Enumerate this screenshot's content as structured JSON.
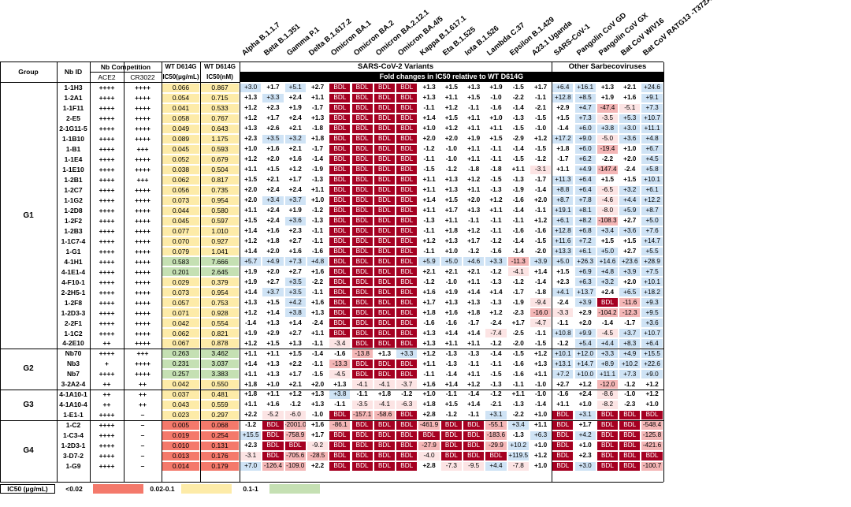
{
  "header": {
    "group": "Group",
    "nb_id": "Nb ID",
    "nb_competition": "Nb Competition",
    "ace2": "ACE2",
    "cr3022": "CR3022",
    "wt_ugml": [
      "WT D614G",
      "IC50(μg/mL)"
    ],
    "wt_nm": [
      "WT D614G",
      "IC50(nM)"
    ],
    "sars_cov2_variants": "SARS-CoV-2 Variants",
    "other_sarbecoviruses": "Other Sarbecoviruses",
    "fold_changes": "Fold changes in IC50 relative to WT D614G"
  },
  "variants": [
    "Alpha B.1.1.7",
    "Beta B.1.351",
    "Gamma P.1",
    "Delta B.1.617.2",
    "Omicron BA.1",
    "Omicron BA.2",
    "Omicron BA.2.12.1",
    "Omicron BA.4/5",
    "Kappa B.1.617.1",
    "Eta B.1.525",
    "Iota B.1.526",
    "Lambda C.37",
    "Epsilon B.1.429",
    "A23.1 Uganda",
    "SARS-CoV-1",
    "Pangolin CoV GD",
    "Pangolin CoV GX",
    "Bat CoV WIV16",
    "Bat CoV RATG13 -T372A"
  ],
  "groups": [
    {
      "name": "G1",
      "rows": 26
    },
    {
      "name": "G2",
      "rows": 4
    },
    {
      "name": "G3",
      "rows": 3
    },
    {
      "name": "G4",
      "rows": 6
    }
  ],
  "rows": [
    {
      "id": "1-1H3",
      "ace2": "++++",
      "cr": "++++",
      "ic": "0.066",
      "nm": "0.867",
      "v": [
        "+3.0",
        "+1.7",
        "+5.1",
        "+2.7",
        "BDL",
        "BDL",
        "BDL",
        "BDL",
        "+1.3",
        "+1.5",
        "+1.3",
        "+1.9",
        "-1.5",
        "+1.7",
        "+6.4",
        "+16.1",
        "+1.3",
        "+2.1",
        "+24.6"
      ]
    },
    {
      "id": "1-2A1",
      "ace2": "++++",
      "cr": "++++",
      "ic": "0.054",
      "nm": "0.715",
      "v": [
        "+1.3",
        "+3.3",
        "+2.4",
        "+1.1",
        "BDL",
        "BDL",
        "BDL",
        "BDL",
        "+1.3",
        "+1.1",
        "+1.5",
        "-1.0",
        "-2.2",
        "-1.1",
        "+12.8",
        "+8.5",
        "+1.9",
        "+1.6",
        "+9.1"
      ]
    },
    {
      "id": "1-1F11",
      "ace2": "++++",
      "cr": "++++",
      "ic": "0.041",
      "nm": "0.533",
      "v": [
        "+1.2",
        "+2.3",
        "+1.9",
        "-1.7",
        "BDL",
        "BDL",
        "BDL",
        "BDL",
        "-1.1",
        "+1.2",
        "-1.1",
        "-1.6",
        "-1.4",
        "-2.1",
        "+2.9",
        "+4.7",
        "-47.4",
        "-5.1",
        "+7.3"
      ]
    },
    {
      "id": "2-E5",
      "ace2": "++++",
      "cr": "++++",
      "ic": "0.058",
      "nm": "0.767",
      "v": [
        "+1.2",
        "+1.7",
        "+2.4",
        "+1.3",
        "BDL",
        "BDL",
        "BDL",
        "BDL",
        "+1.4",
        "+1.5",
        "+1.1",
        "+1.0",
        "-1.3",
        "-1.5",
        "+1.5",
        "+7.3",
        "-3.5",
        "+5.3",
        "+10.7"
      ]
    },
    {
      "id": "2-1G11-5",
      "ace2": "++++",
      "cr": "++++",
      "ic": "0.049",
      "nm": "0.643",
      "v": [
        "+1.3",
        "+2.6",
        "+2.1",
        "-1.8",
        "BDL",
        "BDL",
        "BDL",
        "BDL",
        "+1.0",
        "+1.2",
        "+1.1",
        "+1.1",
        "-1.5",
        "-1.0",
        "-1.4",
        "+6.0",
        "+3.8",
        "+3.0",
        "+11.1"
      ]
    },
    {
      "id": "1-1B10",
      "ace2": "++++",
      "cr": "++++",
      "ic": "0.089",
      "nm": "1.175",
      "v": [
        "+2.3",
        "+3.5",
        "+3.2",
        "+1.8",
        "BDL",
        "BDL",
        "BDL",
        "BDL",
        "+2.0",
        "+2.0",
        "+1.9",
        "+1.5",
        "-2.9",
        "+1.2",
        "+17.2",
        "+9.0",
        "-5.0",
        "+3.6",
        "+4.8"
      ]
    },
    {
      "id": "1-B1",
      "ace2": "++++",
      "cr": "+++",
      "ic": "0.045",
      "nm": "0.593",
      "v": [
        "+1.0",
        "+1.6",
        "+2.1",
        "-1.7",
        "BDL",
        "BDL",
        "BDL",
        "BDL",
        "-1.2",
        "-1.0",
        "+1.1",
        "-1.1",
        "-1.4",
        "-1.5",
        "+1.8",
        "+6.0",
        "-19.4",
        "+1.0",
        "+6.7"
      ]
    },
    {
      "id": "1-1E4",
      "ace2": "++++",
      "cr": "++++",
      "ic": "0.052",
      "nm": "0.679",
      "v": [
        "+1.2",
        "+2.0",
        "+1.6",
        "-1.4",
        "BDL",
        "BDL",
        "BDL",
        "BDL",
        "-1.1",
        "-1.0",
        "+1.1",
        "-1.1",
        "-1.5",
        "-1.2",
        "-1.7",
        "+6.2",
        "-2.2",
        "+2.0",
        "+4.5"
      ]
    },
    {
      "id": "1-1E10",
      "ace2": "++++",
      "cr": "++++",
      "ic": "0.038",
      "nm": "0.504",
      "v": [
        "+1.1",
        "+1.5",
        "+1.2",
        "-1.9",
        "BDL",
        "BDL",
        "BDL",
        "BDL",
        "-1.5",
        "-1.2",
        "-1.8",
        "-1.8",
        "+1.1",
        "-3.1",
        "+1.1",
        "+4.9",
        "-147.4",
        "-2.4",
        "+5.8"
      ]
    },
    {
      "id": "1-2B1",
      "ace2": "++++",
      "cr": "+++",
      "ic": "0.062",
      "nm": "0.817",
      "v": [
        "+1.5",
        "+2.1",
        "+1.7",
        "-1.3",
        "BDL",
        "BDL",
        "BDL",
        "BDL",
        "+1.1",
        "+1.3",
        "+1.2",
        "-1.5",
        "-1.3",
        "-1.7",
        "+11.3",
        "+6.4",
        "+1.5",
        "+1.5",
        "+10.1"
      ]
    },
    {
      "id": "1-2C7",
      "ace2": "++++",
      "cr": "++++",
      "ic": "0.056",
      "nm": "0.735",
      "v": [
        "+2.0",
        "+2.4",
        "+2.4",
        "+1.1",
        "BDL",
        "BDL",
        "BDL",
        "BDL",
        "+1.1",
        "+1.3",
        "+1.1",
        "-1.3",
        "-1.9",
        "-1.4",
        "+8.8",
        "+6.4",
        "-6.5",
        "+3.2",
        "+6.1"
      ]
    },
    {
      "id": "1-1G2",
      "ace2": "++++",
      "cr": "++++",
      "ic": "0.073",
      "nm": "0.954",
      "v": [
        "+2.0",
        "+3.4",
        "+3.7",
        "+1.0",
        "BDL",
        "BDL",
        "BDL",
        "BDL",
        "+1.4",
        "+1.5",
        "+2.0",
        "+1.2",
        "-1.6",
        "+2.0",
        "+8.7",
        "+7.8",
        "-4.6",
        "+4.4",
        "+12.2"
      ]
    },
    {
      "id": "1-2D8",
      "ace2": "++++",
      "cr": "++++",
      "ic": "0.044",
      "nm": "0.580",
      "v": [
        "+1.1",
        "+2.4",
        "+1.9",
        "-1.2",
        "BDL",
        "BDL",
        "BDL",
        "BDL",
        "+1.1",
        "+1.7",
        "+1.3",
        "+1.1",
        "-1.4",
        "-1.1",
        "+19.1",
        "+8.1",
        "-8.0",
        "+5.9",
        "+8.7"
      ]
    },
    {
      "id": "1-2F2",
      "ace2": "++++",
      "cr": "++++",
      "ic": "0.045",
      "nm": "0.597",
      "v": [
        "+1.5",
        "+2.4",
        "+3.6",
        "-1.3",
        "BDL",
        "BDL",
        "BDL",
        "BDL",
        "-1.3",
        "+1.1",
        "-1.1",
        "-1.1",
        "-1.1",
        "+1.2",
        "+6.1",
        "+8.2",
        "-108.3",
        "+2.7",
        "+5.0"
      ]
    },
    {
      "id": "1-2B3",
      "ace2": "++++",
      "cr": "++++",
      "ic": "0.077",
      "nm": "1.010",
      "v": [
        "+1.4",
        "+1.6",
        "+2.3",
        "-1.1",
        "BDL",
        "BDL",
        "BDL",
        "BDL",
        "-1.1",
        "+1.8",
        "+1.2",
        "-1.1",
        "-1.6",
        "-1.6",
        "+12.8",
        "+6.8",
        "+3.4",
        "+3.6",
        "+7.6"
      ]
    },
    {
      "id": "1-1C7-4",
      "ace2": "++++",
      "cr": "++++",
      "ic": "0.070",
      "nm": "0.927",
      "v": [
        "+1.2",
        "+1.8",
        "+2.7",
        "-1.1",
        "BDL",
        "BDL",
        "BDL",
        "BDL",
        "+1.2",
        "+1.3",
        "+1.7",
        "-1.2",
        "-1.4",
        "-1.5",
        "+11.6",
        "+7.2",
        "+1.5",
        "+1.5",
        "+14.7"
      ]
    },
    {
      "id": "1-G1",
      "ace2": "++++",
      "cr": "++++",
      "ic": "0.079",
      "nm": "1.041",
      "v": [
        "+1.4",
        "+2.0",
        "+1.6",
        "-1.6",
        "BDL",
        "BDL",
        "BDL",
        "BDL",
        "-1.1",
        "+1.0",
        "-1.2",
        "-1.6",
        "-1.4",
        "-2.0",
        "+13.3",
        "+6.1",
        "+5.0",
        "+2.7",
        "+5.5"
      ]
    },
    {
      "id": "4-1H1",
      "ace2": "++++",
      "cr": "++++",
      "ic": "0.583",
      "nm": "7.666",
      "v": [
        "+5.7",
        "+4.9",
        "+7.3",
        "+4.8",
        "BDL",
        "BDL",
        "BDL",
        "BDL",
        "+5.9",
        "+5.0",
        "+4.6",
        "+3.3",
        "-11.3",
        "+3.9",
        "+5.0",
        "+26.3",
        "+14.6",
        "+23.6",
        "+28.9"
      ]
    },
    {
      "id": "4-1E1-4",
      "ace2": "++++",
      "cr": "++++",
      "ic": "0.201",
      "nm": "2.645",
      "v": [
        "+1.9",
        "+2.0",
        "+2.7",
        "+1.6",
        "BDL",
        "BDL",
        "BDL",
        "BDL",
        "+2.1",
        "+2.1",
        "+2.1",
        "-1.2",
        "-4.1",
        "+1.4",
        "+1.5",
        "+6.9",
        "+4.8",
        "+3.9",
        "+7.5"
      ]
    },
    {
      "id": "4-F10-1",
      "ace2": "++++",
      "cr": "++++",
      "ic": "0.029",
      "nm": "0.379",
      "v": [
        "+1.9",
        "+2.7",
        "+3.5",
        "-2.2",
        "BDL",
        "BDL",
        "BDL",
        "BDL",
        "-1.2",
        "-1.0",
        "+1.1",
        "-1.3",
        "-1.2",
        "-1.4",
        "+2.3",
        "+6.3",
        "+3.2",
        "+2.0",
        "+10.1"
      ]
    },
    {
      "id": "2-2H5-1",
      "ace2": "++++",
      "cr": "++++",
      "ic": "0.073",
      "nm": "0.954",
      "v": [
        "+1.4",
        "+3.7",
        "+3.5",
        "-1.1",
        "BDL",
        "BDL",
        "BDL",
        "BDL",
        "+1.6",
        "+1.9",
        "+1.4",
        "+1.4",
        "-1.7",
        "-1.8",
        "+4.1",
        "+13.7",
        "+2.4",
        "+6.5",
        "+18.2"
      ]
    },
    {
      "id": "1-2F8",
      "ace2": "++++",
      "cr": "++++",
      "ic": "0.057",
      "nm": "0.753",
      "v": [
        "+1.3",
        "+1.5",
        "+4.2",
        "+1.6",
        "BDL",
        "BDL",
        "BDL",
        "BDL",
        "+1.7",
        "+1.3",
        "+1.3",
        "-1.3",
        "-1.9",
        "-9.4",
        "-2.4",
        "+3.9",
        "BDL",
        "-11.6",
        "+9.3"
      ]
    },
    {
      "id": "1-2D3-3",
      "ace2": "++++",
      "cr": "++++",
      "ic": "0.071",
      "nm": "0.928",
      "v": [
        "+1.2",
        "+1.4",
        "+3.8",
        "+1.3",
        "BDL",
        "BDL",
        "BDL",
        "BDL",
        "+1.8",
        "+1.6",
        "+1.8",
        "+1.2",
        "-2.3",
        "-16.0",
        "-3.3",
        "+2.9",
        "-104.2",
        "-12.3",
        "+9.5"
      ]
    },
    {
      "id": "2-2F1",
      "ace2": "++++",
      "cr": "++++",
      "ic": "0.042",
      "nm": "0.554",
      "v": [
        "-1.4",
        "+1.3",
        "+1.4",
        "-2.4",
        "BDL",
        "BDL",
        "BDL",
        "BDL",
        "-1.6",
        "-1.6",
        "-1.7",
        "-2.4",
        "+1.7",
        "-4.7",
        "-1.1",
        "+2.0",
        "-1.4",
        "-1.7",
        "+3.6"
      ]
    },
    {
      "id": "1-1C2",
      "ace2": "++++",
      "cr": "++++",
      "ic": "0.062",
      "nm": "0.821",
      "v": [
        "+1.9",
        "+2.9",
        "+2.7",
        "+1.1",
        "BDL",
        "BDL",
        "BDL",
        "BDL",
        "+1.3",
        "+1.4",
        "+1.4",
        "-7.4",
        "-2.5",
        "-1.1",
        "+10.8",
        "+9.9",
        "-4.5",
        "+3.7",
        "+10.7"
      ]
    },
    {
      "id": "4-2E10",
      "ace2": "++",
      "cr": "++++",
      "ic": "0.067",
      "nm": "0.878",
      "v": [
        "+1.2",
        "+1.5",
        "+1.3",
        "-1.1",
        "-3.4",
        "BDL",
        "BDL",
        "BDL",
        "+1.3",
        "+1.1",
        "+1.1",
        "-1.2",
        "-2.0",
        "-1.5",
        "-1.2",
        "+5.4",
        "+4.4",
        "+8.3",
        "+6.4"
      ]
    },
    {
      "id": "Nb70",
      "ace2": "++++",
      "cr": "+++",
      "ic": "0.263",
      "nm": "3.462",
      "v": [
        "+1.1",
        "+1.1",
        "+1.5",
        "-1.4",
        "-1.6",
        "-13.8",
        "+1.3",
        "+3.3",
        "+1.2",
        "-1.3",
        "-1.3",
        "-1.4",
        "-1.5",
        "+1.2",
        "+10.1",
        "+12.0",
        "+3.3",
        "+4.9",
        "+15.5"
      ]
    },
    {
      "id": "Nb3",
      "ace2": "+",
      "cr": "++++",
      "ic": "0.231",
      "nm": "3.037",
      "v": [
        "+1.4",
        "+1.3",
        "+2.2",
        "-1.1",
        "-13.3",
        "BDL",
        "BDL",
        "BDL",
        "+1.1",
        "-1.3",
        "-1.1",
        "-1.1",
        "-1.6",
        "+1.3",
        "+13.1",
        "+14.7",
        "+8.9",
        "+10.2",
        "+22.6"
      ]
    },
    {
      "id": "Nb7",
      "ace2": "++++",
      "cr": "++++",
      "ic": "0.257",
      "nm": "3.383",
      "v": [
        "+1.1",
        "+1.3",
        "+1.7",
        "-1.5",
        "-4.5",
        "BDL",
        "BDL",
        "BDL",
        "-1.1",
        "-1.4",
        "+1.1",
        "-1.5",
        "-1.6",
        "+1.1",
        "+7.2",
        "+10.0",
        "+11.1",
        "+7.3",
        "+9.0"
      ]
    },
    {
      "id": "3-2A2-4",
      "ace2": "++",
      "cr": "++",
      "ic": "0.042",
      "nm": "0.550",
      "v": [
        "+1.8",
        "+1.0",
        "+2.1",
        "+2.0",
        "+1.3",
        "-4.1",
        "-4.1",
        "-3.7",
        "+1.6",
        "+1.4",
        "+1.2",
        "-1.3",
        "-1.1",
        "-1.0",
        "+2.7",
        "+1.2",
        "-12.0",
        "-1.2",
        "+1.2"
      ]
    },
    {
      "id": "4-1A10-1",
      "ace2": "++",
      "cr": "++",
      "ic": "0.037",
      "nm": "0.481",
      "v": [
        "+1.8",
        "+1.1",
        "+1.2",
        "+1.3",
        "+3.8",
        "-1.1",
        "+1.8",
        "-1.2",
        "+1.0",
        "-1.1",
        "-1.4",
        "-1.2",
        "+1.1",
        "-1.0",
        "-1.6",
        "+2.4",
        "-8.6",
        "-1.0",
        "+1.2"
      ]
    },
    {
      "id": "4-1A10-4",
      "ace2": "++",
      "cr": "++",
      "ic": "0.043",
      "nm": "0.559",
      "v": [
        "+1.1",
        "+1.6",
        "-1.2",
        "+1.3",
        "-1.1",
        "-3.5",
        "-4.1",
        "-6.3",
        "+1.8",
        "+1.5",
        "+1.4",
        "-2.1",
        "-1.3",
        "-1.4",
        "+1.1",
        "+1.0",
        "-8.2",
        "-2.3",
        "+1.0"
      ]
    },
    {
      "id": "1-E1-1",
      "ace2": "++++",
      "cr": "–",
      "ic": "0.023",
      "nm": "0.297",
      "v": [
        "+2.2",
        "-5.2",
        "-6.0",
        "-1.0",
        "BDL",
        "-157.1",
        "-58.6",
        "BDL",
        "+2.8",
        "-1.2",
        "-1.1",
        "+3.1",
        "-2.2",
        "+1.0",
        "BDL",
        "+3.1",
        "BDL",
        "BDL",
        "BDL"
      ]
    },
    {
      "id": "1-C2",
      "ace2": "++++",
      "cr": "–",
      "ic": "0.005",
      "nm": "0.068",
      "v": [
        "-1.2",
        "BDL",
        "-2001.0",
        "+1.6",
        "-86.1",
        "BDL",
        "BDL",
        "BDL",
        "-461.9",
        "BDL",
        "BDL",
        "-55.1",
        "+3.4",
        "+1.1",
        "BDL",
        "+1.7",
        "BDL",
        "BDL",
        "-548.4"
      ]
    },
    {
      "id": "1-C3-4",
      "ace2": "++++",
      "cr": "–",
      "ic": "0.019",
      "nm": "0.254",
      "v": [
        "+15.5",
        "BDL",
        "-758.9",
        "+1.7",
        "BDL",
        "BDL",
        "BDL",
        "BDL",
        "BDL",
        "BDL",
        "BDL",
        "-183.6",
        "-1.3",
        "+6.3",
        "BDL",
        "+4.2",
        "BDL",
        "BDL",
        "-125.8"
      ]
    },
    {
      "id": "1-2D3-1",
      "ace2": "++++",
      "cr": "–",
      "ic": "0.010",
      "nm": "0.131",
      "v": [
        "+2.3",
        "BDL",
        "BDL",
        "-9.2",
        "BDL",
        "BDL",
        "BDL",
        "BDL",
        "-27.9",
        "BDL",
        "BDL",
        "-29.9",
        "+10.2",
        "+1.0",
        "BDL",
        "+1.0",
        "BDL",
        "BDL",
        "-421.6"
      ]
    },
    {
      "id": "3-D7-2",
      "ace2": "++++",
      "cr": "–",
      "ic": "0.013",
      "nm": "0.176",
      "v": [
        "-3.1",
        "BDL",
        "-705.6",
        "-28.5",
        "BDL",
        "BDL",
        "BDL",
        "BDL",
        "-4.0",
        "BDL",
        "BDL",
        "BDL",
        "+119.5",
        "+1.2",
        "BDL",
        "+2.3",
        "BDL",
        "BDL",
        "BDL"
      ]
    },
    {
      "id": "1-G9",
      "ace2": "++++",
      "cr": "–",
      "ic": "0.014",
      "nm": "0.179",
      "v": [
        "+7.0",
        "-126.4",
        "-109.0",
        "+2.2",
        "BDL",
        "BDL",
        "BDL",
        "BDL",
        "+2.8",
        "-7.3",
        "-9.5",
        "+4.4",
        "-7.8",
        "+1.0",
        "BDL",
        "+3.0",
        "BDL",
        "BDL",
        "-100.7"
      ]
    }
  ],
  "legend": {
    "label": "IC50 (μg/mL)",
    "items": [
      {
        "text": "<0.02",
        "color": "#f4796b"
      },
      {
        "text": "0.02-0.1",
        "color": "#fdeba8"
      },
      {
        "text": "0.1-1",
        "color": "#c5e0b3"
      }
    ]
  },
  "colors": {
    "bdl": "#a50021",
    "strong_neg": "#f4b6b6",
    "weak_neg": "#fce4e4",
    "pos": "#cfe3f5",
    "ic_low": "#f4796b",
    "ic_mid": "#fdeba8",
    "ic_high": "#c5e0b3",
    "band": "#000000"
  }
}
